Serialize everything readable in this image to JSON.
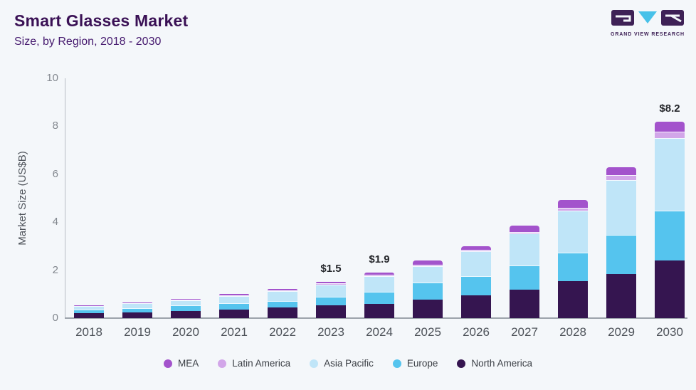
{
  "header": {
    "title": "Smart Glasses Market",
    "subtitle": "Size, by Region, 2018 - 2030"
  },
  "logo": {
    "caption": "GRAND VIEW RESEARCH",
    "letters": [
      "G",
      "V",
      "R"
    ],
    "block_color": "#3e2156",
    "triangle_color": "#47c1e9"
  },
  "chart_data": {
    "type": "bar",
    "stacked": true,
    "title": "Smart Glasses Market Size, by Region, 2018 - 2030",
    "xlabel": "",
    "ylabel": "Market Size (US$B)",
    "ylim": [
      0,
      10
    ],
    "yticks": [
      0,
      2,
      4,
      6,
      8,
      10
    ],
    "grid": false,
    "legend_position": "bottom",
    "categories": [
      "2018",
      "2019",
      "2020",
      "2021",
      "2022",
      "2023",
      "2024",
      "2025",
      "2026",
      "2027",
      "2028",
      "2029",
      "2030"
    ],
    "series": [
      {
        "name": "North America",
        "color": "#351550",
        "values": [
          0.2,
          0.25,
          0.3,
          0.35,
          0.44,
          0.52,
          0.6,
          0.77,
          0.94,
          1.18,
          1.53,
          1.85,
          2.4
        ]
      },
      {
        "name": "Europe",
        "color": "#55c4ee",
        "values": [
          0.16,
          0.18,
          0.22,
          0.26,
          0.28,
          0.36,
          0.5,
          0.7,
          0.81,
          1.02,
          1.21,
          1.61,
          2.07
        ]
      },
      {
        "name": "Asia Pacific",
        "color": "#bfe5f8",
        "values": [
          0.14,
          0.18,
          0.23,
          0.3,
          0.42,
          0.52,
          0.66,
          0.7,
          1.04,
          1.33,
          1.73,
          2.29,
          3.05
        ]
      },
      {
        "name": "Latin America",
        "color": "#d2a6e9",
        "values": [
          0.01,
          0.01,
          0.02,
          0.03,
          0.03,
          0.04,
          0.05,
          0.06,
          0.05,
          0.07,
          0.12,
          0.2,
          0.25
        ]
      },
      {
        "name": "MEA",
        "color": "#a353cc",
        "values": [
          0.01,
          0.02,
          0.03,
          0.06,
          0.05,
          0.06,
          0.09,
          0.17,
          0.16,
          0.25,
          0.34,
          0.35,
          0.43
        ]
      }
    ],
    "totals": [
      0.52,
      0.64,
      0.8,
      1.0,
      1.22,
      1.5,
      1.9,
      2.4,
      3.0,
      3.85,
      4.93,
      6.3,
      8.2
    ],
    "annotations": [
      {
        "category": "2023",
        "label": "$1.5"
      },
      {
        "category": "2024",
        "label": "$1.9"
      },
      {
        "category": "2030",
        "label": "$8.2"
      }
    ],
    "legend": [
      "MEA",
      "Latin America",
      "Asia Pacific",
      "Europe",
      "North America"
    ]
  }
}
